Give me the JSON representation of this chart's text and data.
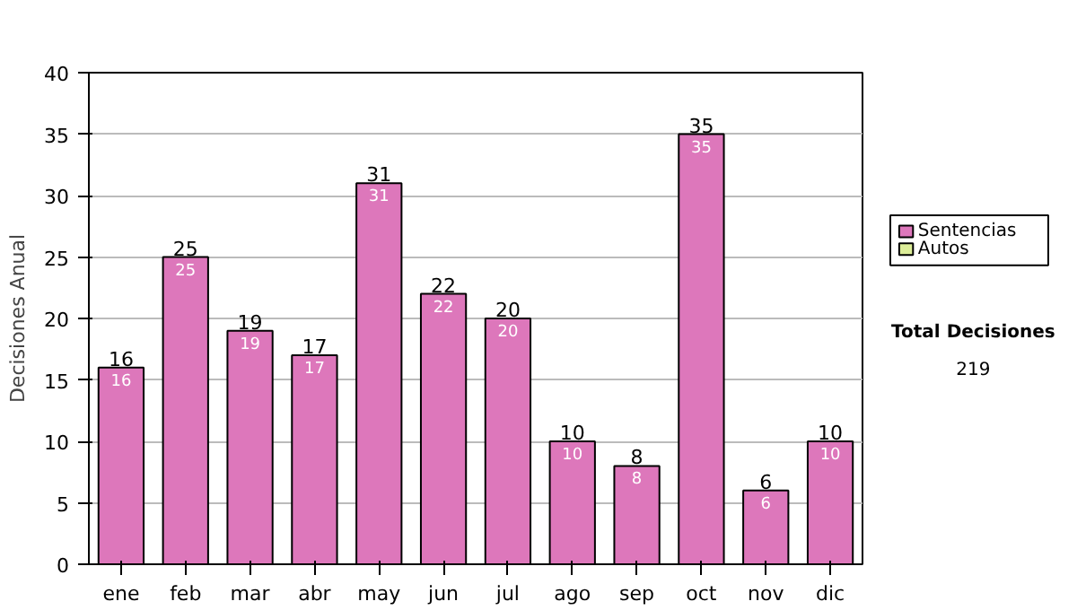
{
  "chart_data": {
    "type": "bar",
    "ylabel": "Decisiones Anual",
    "categories": [
      "ene",
      "feb",
      "mar",
      "abr",
      "may",
      "jun",
      "jul",
      "ago",
      "sep",
      "oct",
      "nov",
      "dic"
    ],
    "series": [
      {
        "name": "Sentencias",
        "color": "#dd77bb",
        "values": [
          16,
          25,
          19,
          17,
          31,
          22,
          20,
          10,
          8,
          35,
          6,
          10
        ],
        "value_labels": [
          "16",
          "25",
          "19",
          "17",
          "31",
          "22",
          "20",
          "10",
          "8",
          "35",
          "6",
          "10"
        ]
      },
      {
        "name": "Autos",
        "color": "#ddee99",
        "values": [
          null,
          null,
          null,
          null,
          null,
          null,
          null,
          null,
          null,
          null,
          null,
          null
        ]
      }
    ],
    "stacked": true,
    "totals": [
      "16",
      "25",
      "19",
      "17",
      "31",
      "22",
      "20",
      "10",
      "8",
      "35",
      "6",
      "10"
    ],
    "ylim": [
      0,
      40
    ],
    "yticks": [
      0,
      5,
      10,
      15,
      20,
      25,
      30,
      35,
      40
    ],
    "grid": "y",
    "legend": "right",
    "annotations": [
      "Total Decisiones",
      "219"
    ]
  }
}
